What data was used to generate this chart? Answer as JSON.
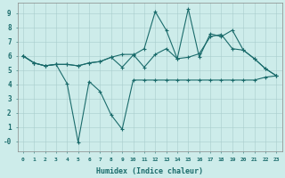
{
  "xlabel": "Humidex (Indice chaleur)",
  "background_color": "#cdecea",
  "line_color": "#1a6b6b",
  "grid_color": "#a8cccc",
  "xlim": [
    -0.5,
    23.5
  ],
  "ylim": [
    -0.7,
    9.7
  ],
  "xticks": [
    0,
    1,
    2,
    3,
    4,
    5,
    6,
    7,
    8,
    9,
    10,
    11,
    12,
    13,
    14,
    15,
    16,
    17,
    18,
    19,
    20,
    21,
    22,
    23
  ],
  "yticks": [
    0,
    1,
    2,
    3,
    4,
    5,
    6,
    7,
    8,
    9
  ],
  "ytick_labels": [
    "-0",
    "1",
    "2",
    "3",
    "4",
    "5",
    "6",
    "7",
    "8",
    "9"
  ],
  "line1_x": [
    0,
    1,
    2,
    3,
    4,
    5,
    6,
    7,
    8,
    9,
    10,
    11,
    12,
    13,
    14,
    15,
    16,
    17,
    18,
    19,
    20,
    21,
    22,
    23
  ],
  "line1_y": [
    6.0,
    5.5,
    5.3,
    5.4,
    5.4,
    5.3,
    5.5,
    5.6,
    5.9,
    6.1,
    6.1,
    5.2,
    6.1,
    6.5,
    5.8,
    5.9,
    6.15,
    7.35,
    7.5,
    6.5,
    6.4,
    5.8,
    5.1,
    4.6
  ],
  "line2_x": [
    0,
    1,
    2,
    3,
    4,
    5,
    6,
    7,
    8,
    9,
    10,
    11,
    12,
    13,
    14,
    15,
    16,
    17,
    18,
    19,
    20,
    21,
    22,
    23
  ],
  "line2_y": [
    6.0,
    5.5,
    5.3,
    5.4,
    5.4,
    5.3,
    5.5,
    5.6,
    5.9,
    5.2,
    6.05,
    6.5,
    9.1,
    7.8,
    5.8,
    9.3,
    5.9,
    7.55,
    7.35,
    7.8,
    6.4,
    5.8,
    5.1,
    4.6
  ],
  "line3_x": [
    0,
    1,
    2,
    3,
    4,
    5,
    6,
    7,
    8,
    9,
    10,
    11,
    12,
    13,
    14,
    15,
    16,
    17,
    18,
    19,
    20,
    21,
    22,
    23
  ],
  "line3_y": [
    6.0,
    5.5,
    5.3,
    5.4,
    4.05,
    -0.05,
    4.2,
    3.5,
    1.85,
    0.85,
    4.3,
    4.3,
    4.3,
    4.3,
    4.3,
    4.3,
    4.3,
    4.3,
    4.3,
    4.3,
    4.3,
    4.3,
    4.5,
    4.6
  ]
}
